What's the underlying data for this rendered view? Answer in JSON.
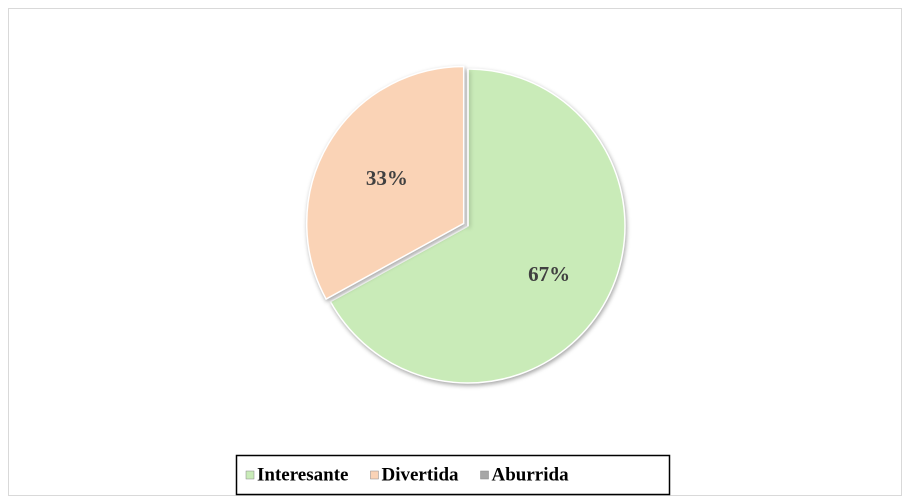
{
  "chart_data": {
    "type": "pie",
    "categories": [
      "Interesante",
      "Divertida",
      "Aburrida"
    ],
    "values": [
      67,
      33,
      0
    ],
    "value_labels": [
      "67%",
      "33%",
      null
    ],
    "colors": [
      "#c9ebb8",
      "#fad3b6",
      "#a6a6a6"
    ],
    "legend": "bottom"
  }
}
